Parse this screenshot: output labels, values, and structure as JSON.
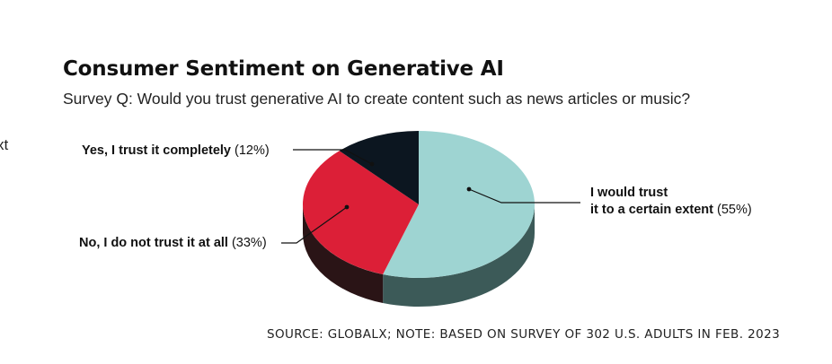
{
  "edge_fragment": "xt",
  "chart_data": {
    "type": "pie",
    "title": "Consumer Sentiment on Generative AI",
    "subtitle": "Survey Q: Would you trust generative AI to create content such as news articles or music?",
    "slices": [
      {
        "label_line1": "I would trust",
        "label_line2": "it to a certain extent",
        "pct_text": "(55%)",
        "value": 55,
        "color": "#9ed4d2",
        "side_color": "#3c5a58"
      },
      {
        "label_line1": "No, I do not trust it at all",
        "label_line2": "",
        "pct_text": "(33%)",
        "value": 33,
        "color": "#dc1f37",
        "side_color": "#2a1416"
      },
      {
        "label_line1": "Yes, I trust it completely",
        "label_line2": "",
        "pct_text": "(12%)",
        "value": 12,
        "color": "#0c1620",
        "side_color": "#0a1016"
      }
    ],
    "source": "SOURCE: GLOBALX; NOTE: BASED ON SURVEY OF 302 U.S. ADULTS IN FEB. 2023"
  }
}
